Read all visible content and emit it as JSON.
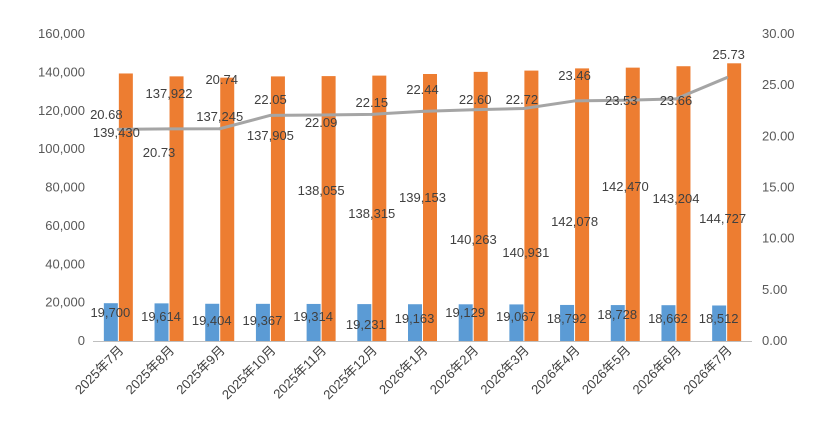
{
  "chart_data": {
    "type": "bar",
    "categories": [
      "2025年7月",
      "2025年8月",
      "2025年9月",
      "2025年10月",
      "2025年11月",
      "2025年12月",
      "2026年1月",
      "2026年2月",
      "2026年3月",
      "2026年4月",
      "2026年5月",
      "2026年6月",
      "2026年7月"
    ],
    "series": [
      {
        "kind": "bar",
        "axis": "left",
        "color": "#5B9BD5",
        "values": [
          19700,
          19614,
          19404,
          19367,
          19314,
          19231,
          19163,
          19129,
          19067,
          18792,
          18728,
          18662,
          18512
        ],
        "labels": [
          "19,700",
          "19,614",
          "19,404",
          "19,367",
          "19,314",
          "19,231",
          "19,163",
          "19,129",
          "19,067",
          "18,792",
          "18,728",
          "18,662",
          "18,512"
        ]
      },
      {
        "kind": "bar",
        "axis": "left",
        "color": "#ED7D31",
        "values": [
          139430,
          137922,
          137245,
          137905,
          138055,
          138315,
          139153,
          140263,
          140931,
          142078,
          142470,
          143204,
          144727
        ],
        "labels": [
          "139,430",
          "137,922",
          "137,245",
          "137,905",
          "138,055",
          "138,315",
          "139,153",
          "140,263",
          "140,931",
          "142,078",
          "142,470",
          "143,204",
          "144,727"
        ]
      },
      {
        "kind": "line",
        "axis": "right",
        "color": "#A5A5A5",
        "values": [
          20.68,
          20.73,
          20.74,
          22.05,
          22.09,
          22.15,
          22.44,
          22.6,
          22.72,
          23.46,
          23.53,
          23.66,
          25.73
        ],
        "labels": [
          "20.68",
          "20.73",
          "20.74",
          "22.05",
          "22.09",
          "22.15",
          "22.44",
          "22.60",
          "22.72",
          "23.46",
          "23.53",
          "23.66",
          "25.73"
        ]
      }
    ],
    "y_left": {
      "ylim": [
        0,
        160000
      ],
      "ticks": [
        "0",
        "20,000",
        "40,000",
        "60,000",
        "80,000",
        "100,000",
        "120,000",
        "140,000",
        "160,000"
      ]
    },
    "y_right": {
      "ylim": [
        0,
        30
      ],
      "ticks": [
        "0.00",
        "5.00",
        "10.00",
        "15.00",
        "20.00",
        "25.00",
        "30.00"
      ]
    },
    "grid": false,
    "legend": "none",
    "title": ""
  }
}
